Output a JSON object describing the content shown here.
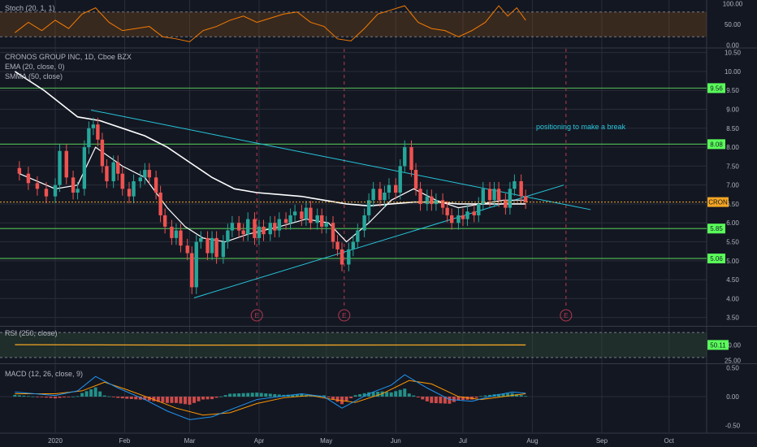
{
  "chart_data": {
    "type": "candlestick",
    "colors": {
      "background": "#131722",
      "grid": "#2a2e39",
      "up": "#26a69a",
      "down": "#ef5350",
      "ema": "#ffffff",
      "trendline": "#26c6da",
      "level": "#4caf50",
      "level_tag": "#5aff5a",
      "last_price": "#f5a623",
      "stoch": "#f57c00",
      "rsi": "#f5a623",
      "macd": "#2196f3",
      "signal": "#ff9800",
      "earnings": "#b93a50"
    },
    "x_axis": {
      "ticks": [
        {
          "label": "2020",
          "day": 0
        },
        {
          "label": "Feb",
          "day": 31
        },
        {
          "label": "Mar",
          "day": 60
        },
        {
          "label": "Apr",
          "day": 91
        },
        {
          "label": "May",
          "day": 121
        },
        {
          "label": "Jun",
          "day": 152
        },
        {
          "label": "Jul",
          "day": 182
        },
        {
          "label": "Aug",
          "day": 213
        },
        {
          "label": "Sep",
          "day": 244
        },
        {
          "label": "Oct",
          "day": 274
        }
      ]
    },
    "price_panel": {
      "legend": [
        "CRONOS GROUP INC, 1D, Cboe BZX",
        "EMA (20, close, 0)",
        "SMMA (50, close)"
      ],
      "y_ticks": [
        "10.50",
        "10.00",
        "9.50",
        "9.00",
        "8.50",
        "8.00",
        "7.50",
        "7.00",
        "6.50",
        "6.00",
        "5.50",
        "5.00",
        "4.50",
        "4.00",
        "3.50"
      ],
      "ylim": [
        3.3,
        10.6
      ],
      "levels": [
        "9.56",
        "8.08",
        "5.85",
        "5.06"
      ],
      "last_price": 6.55,
      "last_price_label": "CRON",
      "annotation": "positioning to make a break",
      "earnings_label": "E",
      "earnings_days": [
        90,
        129,
        228
      ],
      "trendlines": [
        {
          "from": [
            16,
            8.98
          ],
          "to": [
            239,
            6.35
          ]
        },
        {
          "from": [
            62,
            4.02
          ],
          "to": [
            227,
            7.0
          ]
        }
      ],
      "candles": [
        {
          "day": -16,
          "close": 7.3
        },
        {
          "day": -12,
          "close": 7.05
        },
        {
          "day": -8,
          "close": 6.9
        },
        {
          "day": -4,
          "close": 6.7
        },
        {
          "day": 0,
          "close": 7.0
        },
        {
          "day": 2,
          "close": 7.9
        },
        {
          "day": 5,
          "close": 7.2
        },
        {
          "day": 8,
          "close": 6.8
        },
        {
          "day": 10,
          "close": 6.9
        },
        {
          "day": 13,
          "close": 8.0
        },
        {
          "day": 15,
          "close": 8.5
        },
        {
          "day": 17,
          "close": 8.6
        },
        {
          "day": 19,
          "close": 8.2
        },
        {
          "day": 21,
          "close": 7.5
        },
        {
          "day": 23,
          "close": 7.1
        },
        {
          "day": 26,
          "close": 7.6
        },
        {
          "day": 28,
          "close": 7.3
        },
        {
          "day": 30,
          "close": 6.9
        },
        {
          "day": 33,
          "close": 6.7
        },
        {
          "day": 35,
          "close": 7.1
        },
        {
          "day": 38,
          "close": 7.2
        },
        {
          "day": 40,
          "close": 7.4
        },
        {
          "day": 42,
          "close": 7.2
        },
        {
          "day": 45,
          "close": 6.8
        },
        {
          "day": 47,
          "close": 6.2
        },
        {
          "day": 49,
          "close": 5.9
        },
        {
          "day": 52,
          "close": 5.6
        },
        {
          "day": 54,
          "close": 5.8
        },
        {
          "day": 56,
          "close": 5.4
        },
        {
          "day": 59,
          "close": 5.2
        },
        {
          "day": 61,
          "close": 4.3
        },
        {
          "day": 63,
          "close": 5.5
        },
        {
          "day": 65,
          "close": 5.6
        },
        {
          "day": 68,
          "close": 5.2
        },
        {
          "day": 70,
          "close": 5.6
        },
        {
          "day": 72,
          "close": 5.1
        },
        {
          "day": 75,
          "close": 5.5
        },
        {
          "day": 77,
          "close": 5.8
        },
        {
          "day": 79,
          "close": 6.0
        },
        {
          "day": 82,
          "close": 5.8
        },
        {
          "day": 84,
          "close": 5.7
        },
        {
          "day": 86,
          "close": 6.1
        },
        {
          "day": 89,
          "close": 5.6
        },
        {
          "day": 91,
          "close": 5.9
        },
        {
          "day": 93,
          "close": 5.7
        },
        {
          "day": 96,
          "close": 6.0
        },
        {
          "day": 98,
          "close": 5.8
        },
        {
          "day": 100,
          "close": 6.1
        },
        {
          "day": 103,
          "close": 6.0
        },
        {
          "day": 105,
          "close": 6.2
        },
        {
          "day": 107,
          "close": 6.3
        },
        {
          "day": 110,
          "close": 6.1
        },
        {
          "day": 112,
          "close": 6.4
        },
        {
          "day": 114,
          "close": 6.0
        },
        {
          "day": 117,
          "close": 6.2
        },
        {
          "day": 119,
          "close": 5.9
        },
        {
          "day": 121,
          "close": 6.0
        },
        {
          "day": 124,
          "close": 5.5
        },
        {
          "day": 126,
          "close": 5.3
        },
        {
          "day": 128,
          "close": 4.9
        },
        {
          "day": 131,
          "close": 5.3
        },
        {
          "day": 133,
          "close": 5.5
        },
        {
          "day": 135,
          "close": 5.8
        },
        {
          "day": 138,
          "close": 6.2
        },
        {
          "day": 140,
          "close": 6.6
        },
        {
          "day": 142,
          "close": 6.9
        },
        {
          "day": 145,
          "close": 6.6
        },
        {
          "day": 147,
          "close": 6.8
        },
        {
          "day": 149,
          "close": 7.0
        },
        {
          "day": 152,
          "close": 6.8
        },
        {
          "day": 154,
          "close": 7.5
        },
        {
          "day": 156,
          "close": 8.0
        },
        {
          "day": 159,
          "close": 7.4
        },
        {
          "day": 161,
          "close": 6.9
        },
        {
          "day": 163,
          "close": 6.5
        },
        {
          "day": 166,
          "close": 6.7
        },
        {
          "day": 168,
          "close": 6.5
        },
        {
          "day": 170,
          "close": 6.6
        },
        {
          "day": 173,
          "close": 6.4
        },
        {
          "day": 175,
          "close": 6.2
        },
        {
          "day": 177,
          "close": 6.0
        },
        {
          "day": 180,
          "close": 6.2
        },
        {
          "day": 182,
          "close": 6.1
        },
        {
          "day": 184,
          "close": 6.3
        },
        {
          "day": 187,
          "close": 6.2
        },
        {
          "day": 189,
          "close": 6.5
        },
        {
          "day": 191,
          "close": 6.9
        },
        {
          "day": 194,
          "close": 6.6
        },
        {
          "day": 196,
          "close": 6.9
        },
        {
          "day": 198,
          "close": 6.6
        },
        {
          "day": 201,
          "close": 6.4
        },
        {
          "day": 203,
          "close": 6.9
        },
        {
          "day": 205,
          "close": 7.1
        },
        {
          "day": 208,
          "close": 6.7
        },
        {
          "day": 210,
          "close": 6.55
        }
      ],
      "ema": [
        {
          "day": -16,
          "value": 7.3
        },
        {
          "day": 0,
          "value": 6.9
        },
        {
          "day": 10,
          "value": 7.0
        },
        {
          "day": 18,
          "value": 8.0
        },
        {
          "day": 30,
          "value": 7.5
        },
        {
          "day": 40,
          "value": 7.2
        },
        {
          "day": 50,
          "value": 6.4
        },
        {
          "day": 58,
          "value": 5.9
        },
        {
          "day": 66,
          "value": 5.6
        },
        {
          "day": 76,
          "value": 5.5
        },
        {
          "day": 86,
          "value": 5.7
        },
        {
          "day": 100,
          "value": 5.9
        },
        {
          "day": 112,
          "value": 6.1
        },
        {
          "day": 122,
          "value": 6.0
        },
        {
          "day": 130,
          "value": 5.5
        },
        {
          "day": 140,
          "value": 6.0
        },
        {
          "day": 150,
          "value": 6.6
        },
        {
          "day": 160,
          "value": 6.9
        },
        {
          "day": 170,
          "value": 6.6
        },
        {
          "day": 180,
          "value": 6.4
        },
        {
          "day": 190,
          "value": 6.5
        },
        {
          "day": 200,
          "value": 6.6
        },
        {
          "day": 210,
          "value": 6.6
        }
      ],
      "smma": [
        {
          "day": -18,
          "value": 10.0
        },
        {
          "day": -5,
          "value": 9.5
        },
        {
          "day": 10,
          "value": 8.8
        },
        {
          "day": 20,
          "value": 8.7
        },
        {
          "day": 30,
          "value": 8.5
        },
        {
          "day": 40,
          "value": 8.3
        },
        {
          "day": 50,
          "value": 8.0
        },
        {
          "day": 60,
          "value": 7.6
        },
        {
          "day": 70,
          "value": 7.2
        },
        {
          "day": 80,
          "value": 6.9
        },
        {
          "day": 90,
          "value": 6.8
        },
        {
          "day": 100,
          "value": 6.75
        },
        {
          "day": 110,
          "value": 6.7
        },
        {
          "day": 120,
          "value": 6.6
        },
        {
          "day": 130,
          "value": 6.5
        },
        {
          "day": 140,
          "value": 6.45
        },
        {
          "day": 150,
          "value": 6.5
        },
        {
          "day": 160,
          "value": 6.55
        },
        {
          "day": 170,
          "value": 6.55
        },
        {
          "day": 180,
          "value": 6.5
        },
        {
          "day": 190,
          "value": 6.5
        },
        {
          "day": 200,
          "value": 6.5
        },
        {
          "day": 210,
          "value": 6.5
        }
      ]
    },
    "stoch_panel": {
      "legend": "Stoch (20, 1, 1)",
      "y_ticks": [
        "100.00",
        "50.00",
        "0.00"
      ],
      "ylim": [
        -5,
        105
      ],
      "bands": [
        80,
        20
      ],
      "values": [
        {
          "day": -18,
          "value": 30
        },
        {
          "day": -12,
          "value": 55
        },
        {
          "day": -6,
          "value": 35
        },
        {
          "day": 0,
          "value": 60
        },
        {
          "day": 6,
          "value": 40
        },
        {
          "day": 12,
          "value": 75
        },
        {
          "day": 18,
          "value": 90
        },
        {
          "day": 24,
          "value": 55
        },
        {
          "day": 30,
          "value": 35
        },
        {
          "day": 36,
          "value": 40
        },
        {
          "day": 42,
          "value": 45
        },
        {
          "day": 48,
          "value": 20
        },
        {
          "day": 54,
          "value": 15
        },
        {
          "day": 60,
          "value": 8
        },
        {
          "day": 66,
          "value": 35
        },
        {
          "day": 72,
          "value": 45
        },
        {
          "day": 78,
          "value": 60
        },
        {
          "day": 84,
          "value": 70
        },
        {
          "day": 90,
          "value": 55
        },
        {
          "day": 96,
          "value": 65
        },
        {
          "day": 102,
          "value": 75
        },
        {
          "day": 108,
          "value": 80
        },
        {
          "day": 114,
          "value": 55
        },
        {
          "day": 120,
          "value": 45
        },
        {
          "day": 126,
          "value": 15
        },
        {
          "day": 132,
          "value": 10
        },
        {
          "day": 138,
          "value": 40
        },
        {
          "day": 144,
          "value": 75
        },
        {
          "day": 150,
          "value": 85
        },
        {
          "day": 156,
          "value": 95
        },
        {
          "day": 162,
          "value": 55
        },
        {
          "day": 168,
          "value": 40
        },
        {
          "day": 174,
          "value": 35
        },
        {
          "day": 180,
          "value": 20
        },
        {
          "day": 186,
          "value": 35
        },
        {
          "day": 192,
          "value": 55
        },
        {
          "day": 198,
          "value": 95
        },
        {
          "day": 202,
          "value": 70
        },
        {
          "day": 206,
          "value": 90
        },
        {
          "day": 210,
          "value": 60
        }
      ]
    },
    "rsi_panel": {
      "legend": "RSI (250, close)",
      "y_ticks": [
        "50.00",
        "25.00"
      ],
      "value_label": "50.11",
      "ylim": [
        22,
        78
      ],
      "bands": [
        70,
        30
      ],
      "values": [
        {
          "day": -18,
          "value": 50.5
        },
        {
          "day": 60,
          "value": 49.8
        },
        {
          "day": 150,
          "value": 50.0
        },
        {
          "day": 210,
          "value": 50.11
        }
      ]
    },
    "macd_panel": {
      "legend": "MACD (12, 26, close, 9)",
      "y_ticks": [
        "0.50",
        "0.00",
        "-0.50"
      ],
      "ylim": [
        -0.62,
        0.55
      ],
      "macd": [
        {
          "day": -18,
          "value": 0.08
        },
        {
          "day": 0,
          "value": 0.02
        },
        {
          "day": 10,
          "value": 0.1
        },
        {
          "day": 18,
          "value": 0.35
        },
        {
          "day": 28,
          "value": 0.15
        },
        {
          "day": 40,
          "value": -0.05
        },
        {
          "day": 50,
          "value": -0.25
        },
        {
          "day": 60,
          "value": -0.4
        },
        {
          "day": 70,
          "value": -0.35
        },
        {
          "day": 80,
          "value": -0.2
        },
        {
          "day": 90,
          "value": -0.05
        },
        {
          "day": 100,
          "value": 0.0
        },
        {
          "day": 110,
          "value": 0.05
        },
        {
          "day": 120,
          "value": 0.0
        },
        {
          "day": 128,
          "value": -0.2
        },
        {
          "day": 140,
          "value": 0.05
        },
        {
          "day": 150,
          "value": 0.2
        },
        {
          "day": 156,
          "value": 0.38
        },
        {
          "day": 166,
          "value": 0.15
        },
        {
          "day": 176,
          "value": -0.05
        },
        {
          "day": 186,
          "value": -0.08
        },
        {
          "day": 196,
          "value": 0.02
        },
        {
          "day": 204,
          "value": 0.08
        },
        {
          "day": 210,
          "value": 0.06
        }
      ],
      "signal": [
        {
          "day": -18,
          "value": 0.05
        },
        {
          "day": 0,
          "value": 0.05
        },
        {
          "day": 12,
          "value": 0.1
        },
        {
          "day": 22,
          "value": 0.25
        },
        {
          "day": 32,
          "value": 0.12
        },
        {
          "day": 44,
          "value": -0.05
        },
        {
          "day": 54,
          "value": -0.2
        },
        {
          "day": 66,
          "value": -0.32
        },
        {
          "day": 78,
          "value": -0.28
        },
        {
          "day": 90,
          "value": -0.12
        },
        {
          "day": 102,
          "value": -0.02
        },
        {
          "day": 114,
          "value": 0.02
        },
        {
          "day": 124,
          "value": -0.05
        },
        {
          "day": 134,
          "value": -0.1
        },
        {
          "day": 146,
          "value": 0.05
        },
        {
          "day": 158,
          "value": 0.28
        },
        {
          "day": 168,
          "value": 0.22
        },
        {
          "day": 180,
          "value": 0.0
        },
        {
          "day": 190,
          "value": -0.05
        },
        {
          "day": 200,
          "value": 0.0
        },
        {
          "day": 210,
          "value": 0.05
        }
      ]
    }
  }
}
